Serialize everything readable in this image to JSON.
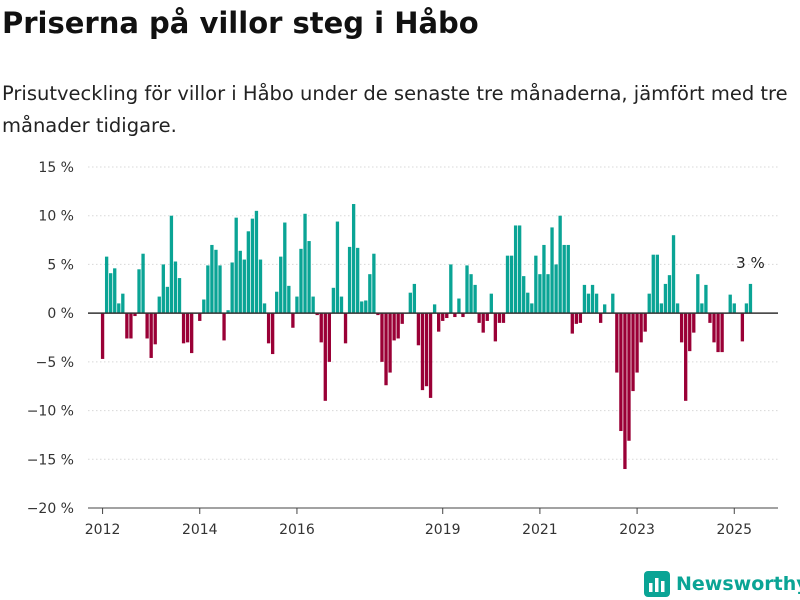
{
  "title": "Priserna på villor steg i Håbo",
  "subtitle": "Prisutveckling för villor i Håbo under de senaste tre månaderna, jämfört med tre månader tidigare.",
  "brand": {
    "name": "Newsworthy",
    "icon": "bar-chart-icon"
  },
  "colors": {
    "positive": "#0aa495",
    "negative": "#9a0036",
    "grid": "#d8d8d8",
    "zero": "#333333"
  },
  "chart_data": {
    "type": "bar",
    "ylabel": "",
    "xlabel": "",
    "ylim": [
      -20,
      15
    ],
    "yticks": [
      15,
      10,
      5,
      0,
      -5,
      -10,
      -15,
      -20
    ],
    "ytick_labels": [
      "15 %",
      "10 %",
      "5 %",
      "0 %",
      "−5 %",
      "−10 %",
      "−15 %",
      "−20 %"
    ],
    "xlim": [
      2011.7,
      2025.9
    ],
    "xticks": [
      2012,
      2014,
      2016,
      2019,
      2021,
      2023,
      2025
    ],
    "xtick_labels": [
      "2012",
      "2014",
      "2016",
      "2019",
      "2021",
      "2023",
      "2025"
    ],
    "grid": true,
    "start": {
      "year": 2012,
      "month": 1
    },
    "annotation": {
      "label": "3 %",
      "value": 3
    },
    "values": [
      -4.7,
      5.8,
      4.1,
      4.6,
      1.0,
      2.0,
      -2.6,
      -2.6,
      -0.3,
      4.5,
      6.1,
      -2.6,
      -4.6,
      -3.2,
      1.7,
      5.0,
      2.7,
      10.0,
      5.3,
      3.6,
      -3.1,
      -3.0,
      -4.1,
      0.0,
      -0.8,
      1.4,
      4.9,
      7.0,
      6.5,
      4.9,
      -2.8,
      0.3,
      5.2,
      9.8,
      6.4,
      5.5,
      8.4,
      9.7,
      10.5,
      5.5,
      1.0,
      -3.1,
      -4.2,
      2.2,
      5.8,
      9.3,
      2.8,
      -1.5,
      1.7,
      6.6,
      10.2,
      7.4,
      1.7,
      -0.2,
      -3.0,
      -9.0,
      -5.0,
      2.6,
      9.4,
      1.7,
      -3.1,
      6.8,
      11.2,
      6.7,
      1.2,
      1.3,
      4.0,
      6.1,
      -0.2,
      -5.0,
      -7.4,
      -6.1,
      -2.8,
      -2.6,
      -1.1,
      0.0,
      2.1,
      3.0,
      -3.3,
      -7.9,
      -7.5,
      -8.7,
      0.9,
      -1.9,
      -0.8,
      -0.5,
      5.0,
      -0.4,
      1.5,
      -0.4,
      4.9,
      4.0,
      2.9,
      -1.0,
      -2.0,
      -0.8,
      2.0,
      -2.9,
      -1.0,
      -1.0,
      5.9,
      5.9,
      9.0,
      9.0,
      3.8,
      2.1,
      1.0,
      5.9,
      4.0,
      7.0,
      4.0,
      8.8,
      5.0,
      10.0,
      7.0,
      7.0,
      -2.1,
      -1.1,
      -1.0,
      2.9,
      2.0,
      2.9,
      2.0,
      -1.0,
      0.9,
      0.0,
      2.0,
      -6.1,
      -12.1,
      -16.0,
      -13.1,
      -8.0,
      -6.1,
      -3.0,
      -1.9,
      2.0,
      6.0,
      6.0,
      1.0,
      3.0,
      3.9,
      8.0,
      1.0,
      -3.0,
      -9.0,
      -3.9,
      -2.0,
      4.0,
      1.0,
      2.9,
      -1.0,
      -3.0,
      -4.0,
      -4.0,
      0.0,
      1.9,
      1.0,
      0.0,
      -2.9,
      1.0,
      3.0
    ]
  }
}
